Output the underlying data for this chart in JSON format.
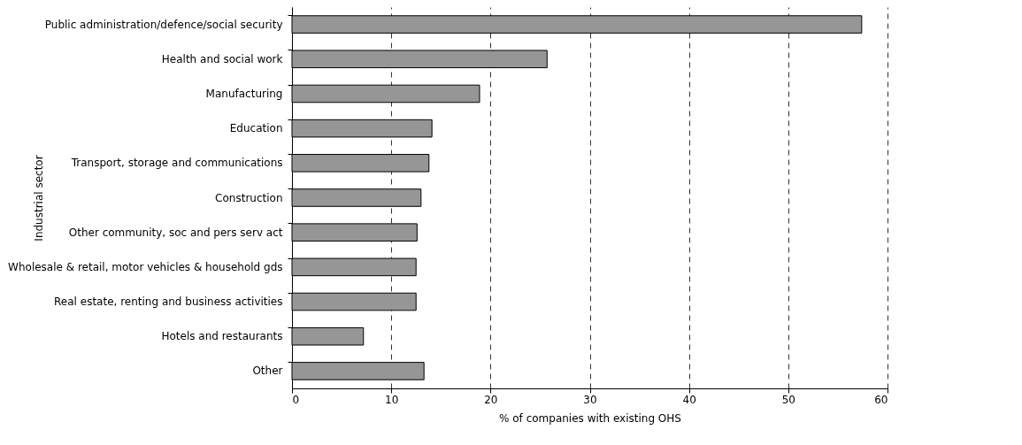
{
  "chart_data": {
    "type": "bar",
    "orientation": "horizontal",
    "xlabel": "% of companies with existing OHS",
    "ylabel": "Industrial sector",
    "categories": [
      "Public administration/defence/social security",
      "Health and social work",
      "Manufacturing",
      "Education",
      "Transport, storage and communications",
      "Construction",
      "Other community, soc and pers serv act",
      "Wholesale & retail, motor vehicles & household gds",
      "Real estate, renting and business activities",
      "Hotels and restaurants",
      "Other"
    ],
    "values": [
      57.4,
      25.7,
      18.9,
      14.1,
      13.8,
      13.0,
      12.6,
      12.5,
      12.5,
      7.2,
      13.3
    ],
    "color": "#969696",
    "xlim": [
      0,
      60
    ],
    "xticks": [
      0,
      10,
      20,
      30,
      40,
      50,
      60
    ],
    "grid": "x",
    "line_style": "dashed"
  }
}
